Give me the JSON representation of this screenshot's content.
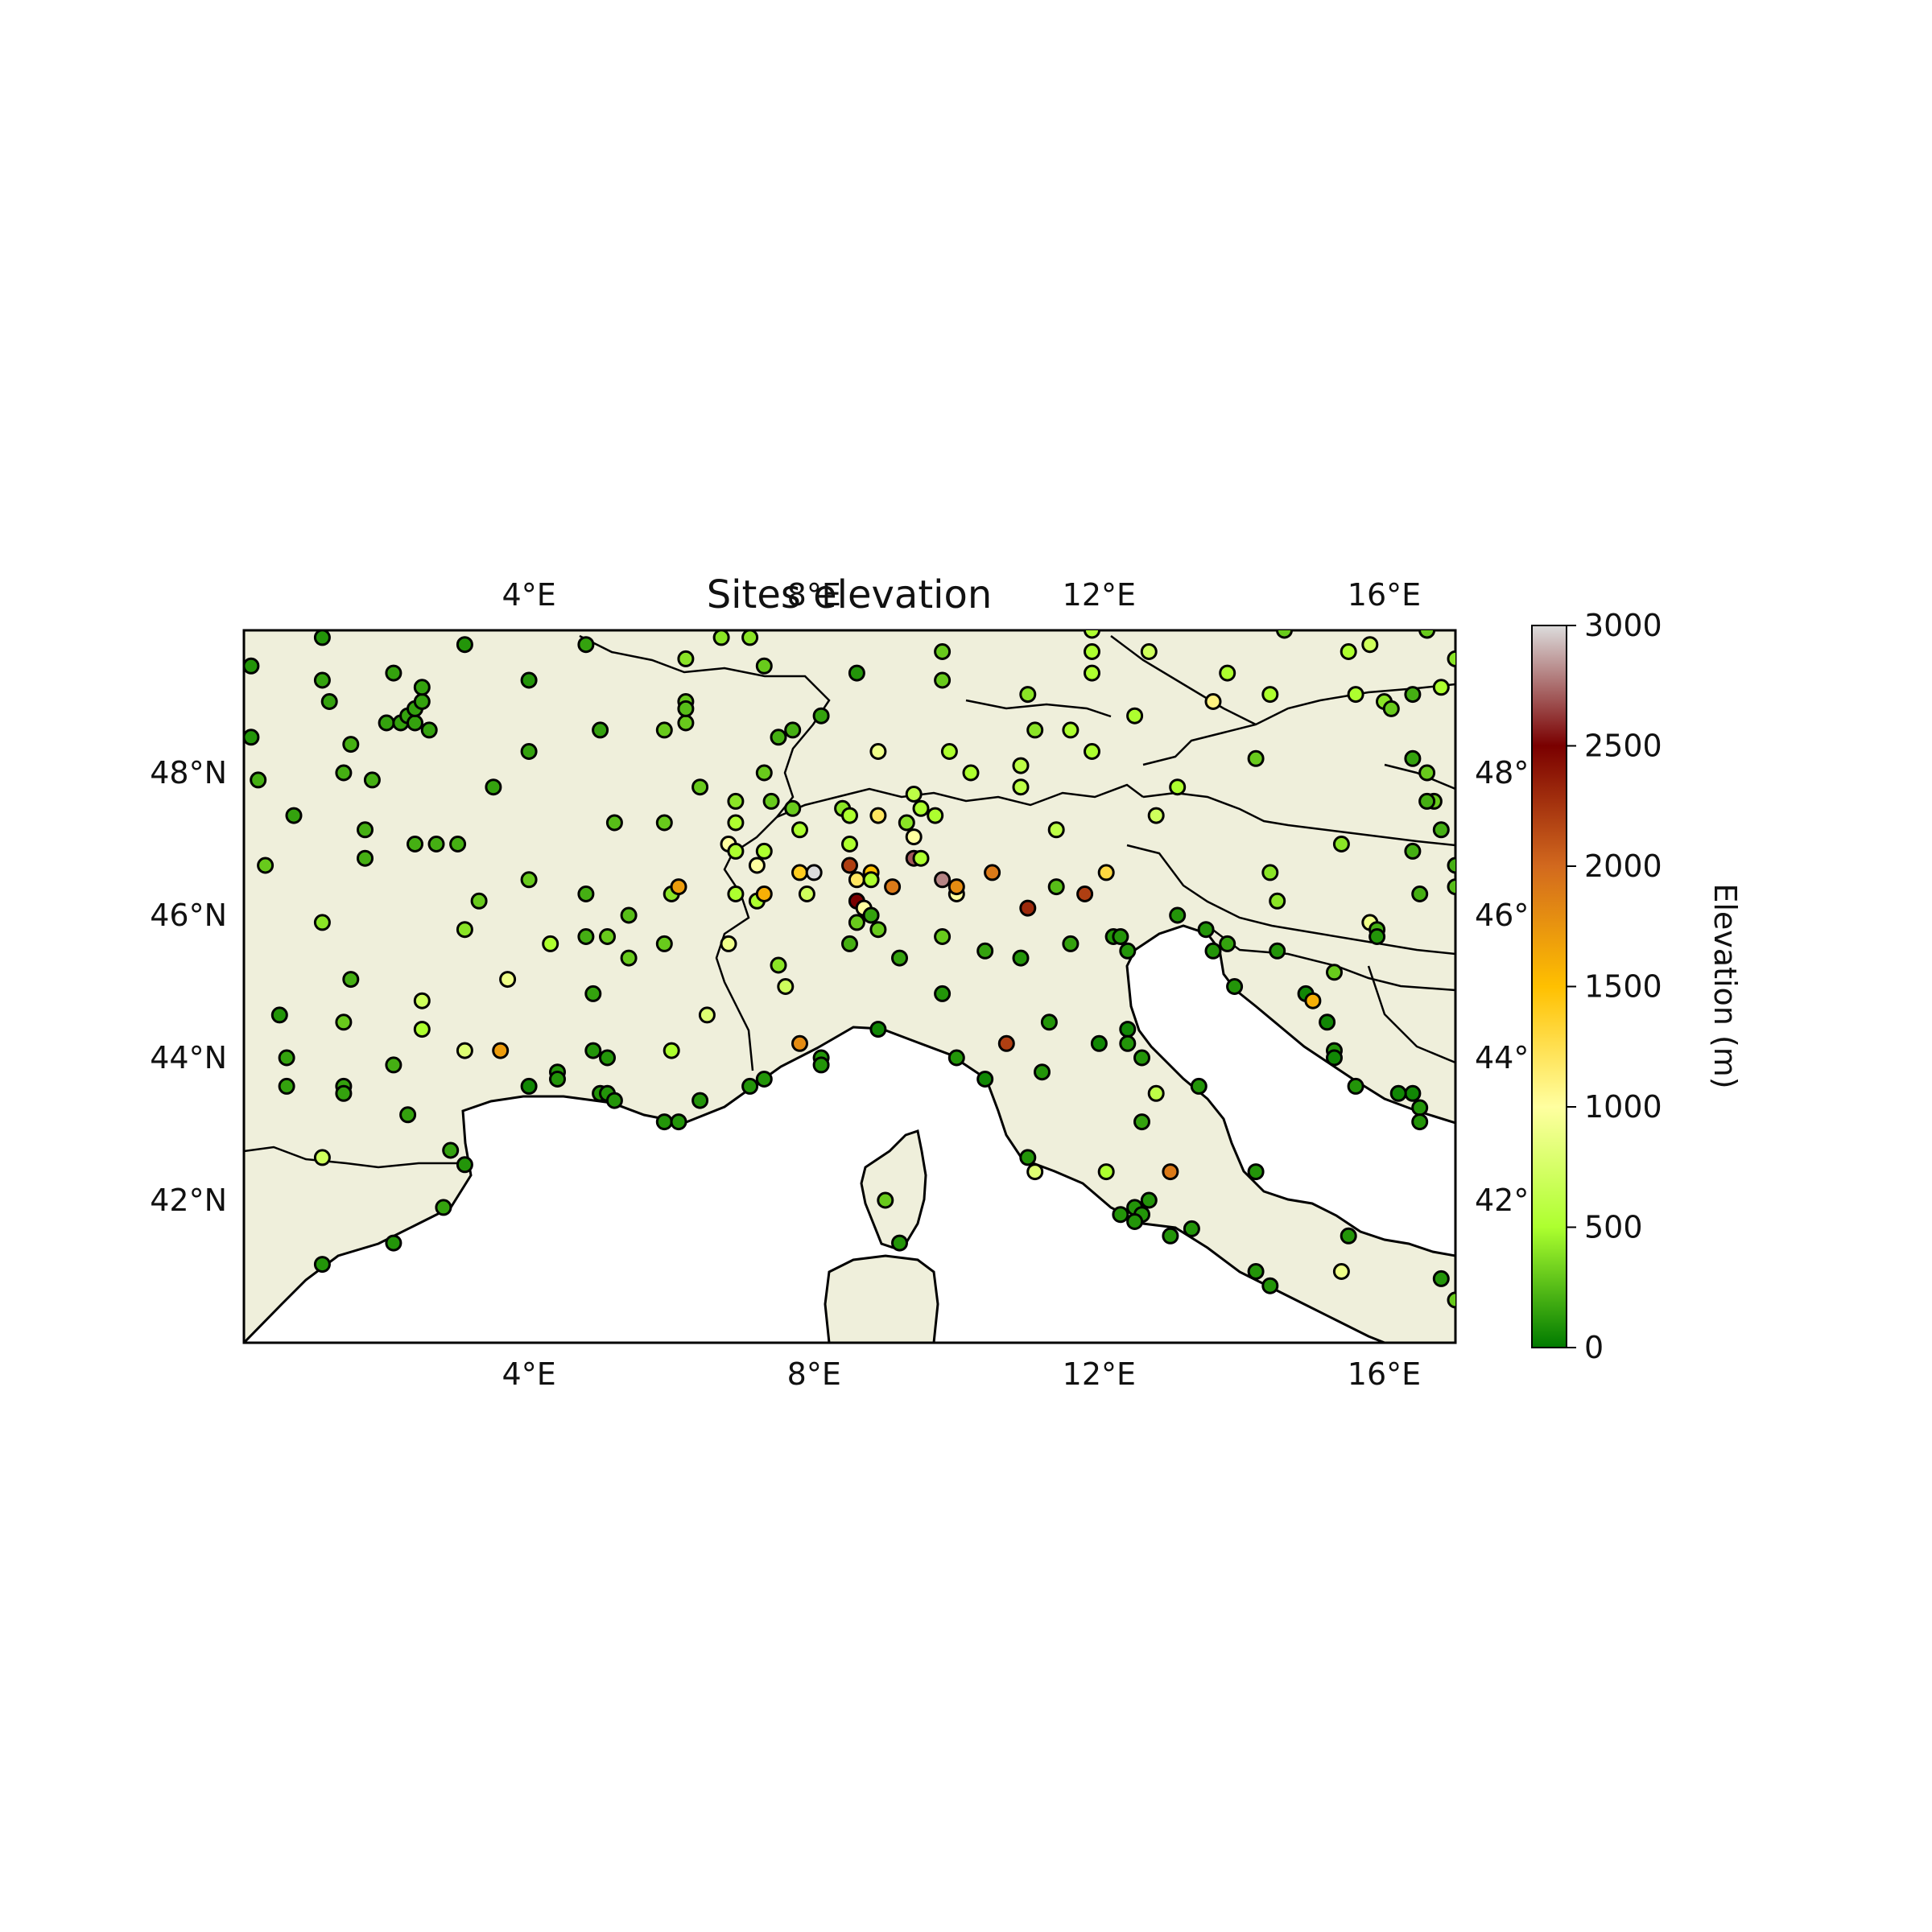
{
  "chart_data": {
    "type": "scatter",
    "title": "Sites elevation",
    "map_extent": {
      "lon": [
        0,
        17
      ],
      "lat": [
        40,
        50
      ]
    },
    "x_ticks": [
      "4°E",
      "8°E",
      "12°E",
      "16°E"
    ],
    "y_ticks": [
      "42°N",
      "44°N",
      "46°N",
      "48°N"
    ],
    "y_ticks_right": [
      "42°",
      "44°",
      "46°",
      "48°"
    ],
    "x_tick_values": [
      4,
      8,
      12,
      16
    ],
    "y_tick_values": [
      42,
      44,
      46,
      48
    ],
    "land_color": "#efefdb",
    "sea_color": "#ffffff",
    "colorbar": {
      "label": "Elevation (m)",
      "ticks": [
        "0",
        "500",
        "1000",
        "1500",
        "2000",
        "2500",
        "3000"
      ],
      "tick_values": [
        0,
        500,
        1000,
        1500,
        2000,
        2500,
        3000
      ],
      "range": [
        0,
        3000
      ],
      "colors": [
        "#007a00",
        "#adff2f",
        "#ffffa0",
        "#ffc000",
        "#d2691e",
        "#7a0000",
        "#dcdcdc"
      ]
    },
    "points": [
      [
        0.1,
        49.5,
        100
      ],
      [
        0.1,
        48.5,
        100
      ],
      [
        0.2,
        47.9,
        200
      ],
      [
        0.3,
        46.7,
        300
      ],
      [
        0.5,
        44.6,
        100
      ],
      [
        0.6,
        44.0,
        150
      ],
      [
        0.6,
        43.6,
        150
      ],
      [
        0.7,
        47.4,
        150
      ],
      [
        1.1,
        49.9,
        100
      ],
      [
        1.1,
        49.3,
        150
      ],
      [
        1.2,
        49.0,
        150
      ],
      [
        1.1,
        45.9,
        400
      ],
      [
        1.1,
        42.6,
        700
      ],
      [
        1.4,
        48.0,
        200
      ],
      [
        1.4,
        44.5,
        300
      ],
      [
        1.4,
        43.6,
        150
      ],
      [
        1.4,
        43.5,
        150
      ],
      [
        1.5,
        45.1,
        200
      ],
      [
        1.5,
        48.4,
        200
      ],
      [
        1.7,
        47.2,
        200
      ],
      [
        1.7,
        46.8,
        200
      ],
      [
        1.8,
        47.9,
        200
      ],
      [
        2.0,
        48.7,
        150
      ],
      [
        2.1,
        49.4,
        150
      ],
      [
        2.2,
        48.7,
        150
      ],
      [
        2.3,
        48.8,
        150
      ],
      [
        2.4,
        48.7,
        150
      ],
      [
        2.4,
        47.0,
        200
      ],
      [
        2.4,
        48.9,
        150
      ],
      [
        2.5,
        49.0,
        150
      ],
      [
        2.5,
        49.2,
        150
      ],
      [
        2.6,
        48.6,
        150
      ],
      [
        2.7,
        47.0,
        200
      ],
      [
        2.5,
        44.8,
        700
      ],
      [
        2.5,
        44.4,
        500
      ],
      [
        2.3,
        43.2,
        150
      ],
      [
        2.1,
        43.9,
        200
      ],
      [
        2.9,
        42.7,
        150
      ],
      [
        2.8,
        41.9,
        150
      ],
      [
        1.1,
        41.1,
        100
      ],
      [
        2.1,
        41.4,
        100
      ],
      [
        3.1,
        49.8,
        100
      ],
      [
        3.1,
        45.8,
        400
      ],
      [
        3.3,
        46.2,
        300
      ],
      [
        3.0,
        47.0,
        200
      ],
      [
        3.1,
        44.1,
        800
      ],
      [
        3.6,
        44.1,
        1700
      ],
      [
        3.1,
        42.5,
        100
      ],
      [
        3.5,
        47.8,
        150
      ],
      [
        3.7,
        45.1,
        900
      ],
      [
        4.0,
        49.3,
        100
      ],
      [
        4.0,
        48.3,
        150
      ],
      [
        4.0,
        46.5,
        300
      ],
      [
        4.3,
        45.6,
        500
      ],
      [
        4.4,
        43.8,
        100
      ],
      [
        4.4,
        43.7,
        100
      ],
      [
        4.0,
        43.6,
        50
      ],
      [
        4.8,
        49.8,
        150
      ],
      [
        4.8,
        46.3,
        200
      ],
      [
        4.8,
        45.7,
        200
      ],
      [
        4.9,
        44.9,
        150
      ],
      [
        4.9,
        44.1,
        100
      ],
      [
        5.0,
        43.5,
        100
      ],
      [
        5.1,
        44.0,
        100
      ],
      [
        5.1,
        43.5,
        100
      ],
      [
        5.2,
        43.4,
        100
      ],
      [
        5.0,
        48.6,
        150
      ],
      [
        5.2,
        47.3,
        250
      ],
      [
        5.4,
        46.0,
        250
      ],
      [
        5.1,
        45.7,
        300
      ],
      [
        5.4,
        45.4,
        300
      ],
      [
        5.9,
        43.1,
        100
      ],
      [
        6.1,
        43.1,
        100
      ],
      [
        5.9,
        45.6,
        300
      ],
      [
        6.0,
        46.3,
        400
      ],
      [
        6.1,
        46.4,
        1700
      ],
      [
        6.0,
        44.1,
        500
      ],
      [
        5.9,
        48.6,
        300
      ],
      [
        5.9,
        47.3,
        300
      ],
      [
        6.2,
        49.6,
        400
      ],
      [
        6.2,
        49.0,
        300
      ],
      [
        6.2,
        48.7,
        300
      ],
      [
        6.2,
        48.9,
        250
      ],
      [
        6.4,
        47.8,
        300
      ],
      [
        6.4,
        43.4,
        100
      ],
      [
        6.5,
        44.6,
        800
      ],
      [
        6.7,
        49.9,
        400
      ],
      [
        6.8,
        45.6,
        900
      ],
      [
        6.8,
        47.0,
        1000
      ],
      [
        6.9,
        47.3,
        500
      ],
      [
        6.9,
        46.9,
        500
      ],
      [
        6.9,
        47.6,
        400
      ],
      [
        6.9,
        46.3,
        500
      ],
      [
        7.1,
        49.9,
        400
      ],
      [
        7.1,
        43.6,
        100
      ],
      [
        7.3,
        43.7,
        100
      ],
      [
        7.3,
        49.5,
        300
      ],
      [
        7.3,
        48.0,
        300
      ],
      [
        7.4,
        47.6,
        300
      ],
      [
        7.3,
        46.9,
        500
      ],
      [
        7.2,
        46.7,
        1000
      ],
      [
        7.2,
        46.2,
        500
      ],
      [
        7.3,
        46.3,
        1600
      ],
      [
        7.5,
        48.5,
        200
      ],
      [
        7.5,
        45.3,
        400
      ],
      [
        7.6,
        45.0,
        700
      ],
      [
        7.7,
        48.6,
        200
      ],
      [
        7.7,
        47.5,
        300
      ],
      [
        7.8,
        47.2,
        500
      ],
      [
        7.8,
        46.6,
        1400
      ],
      [
        7.8,
        44.2,
        1800
      ],
      [
        7.9,
        46.3,
        700
      ],
      [
        8.0,
        46.6,
        3000
      ],
      [
        8.1,
        48.8,
        150
      ],
      [
        8.1,
        44.0,
        100
      ],
      [
        8.1,
        43.9,
        100
      ],
      [
        8.4,
        47.5,
        400
      ],
      [
        8.5,
        47.4,
        500
      ],
      [
        8.5,
        47.0,
        500
      ],
      [
        8.5,
        46.7,
        2200
      ],
      [
        8.5,
        45.6,
        200
      ],
      [
        8.6,
        46.5,
        1200
      ],
      [
        8.6,
        45.9,
        300
      ],
      [
        8.6,
        49.4,
        100
      ],
      [
        8.6,
        46.2,
        2500
      ],
      [
        8.7,
        46.1,
        1000
      ],
      [
        8.8,
        46.6,
        1500
      ],
      [
        8.8,
        46.5,
        500
      ],
      [
        8.8,
        46.0,
        150
      ],
      [
        8.9,
        45.8,
        300
      ],
      [
        8.9,
        47.4,
        1200
      ],
      [
        8.9,
        48.3,
        900
      ],
      [
        8.9,
        44.4,
        50
      ],
      [
        9.1,
        46.4,
        1900
      ],
      [
        9.0,
        42.0,
        300
      ],
      [
        9.2,
        45.4,
        150
      ],
      [
        9.2,
        41.4,
        100
      ],
      [
        9.3,
        47.3,
        400
      ],
      [
        9.4,
        47.1,
        1000
      ],
      [
        9.4,
        47.7,
        600
      ],
      [
        9.5,
        47.5,
        500
      ],
      [
        9.4,
        46.8,
        2700
      ],
      [
        9.5,
        46.8,
        500
      ],
      [
        9.7,
        47.4,
        500
      ],
      [
        9.8,
        46.5,
        2800
      ],
      [
        9.8,
        45.7,
        300
      ],
      [
        9.8,
        44.9,
        100
      ],
      [
        9.8,
        49.7,
        300
      ],
      [
        9.8,
        49.3,
        300
      ],
      [
        9.9,
        48.3,
        500
      ],
      [
        10.0,
        46.3,
        1000
      ],
      [
        10.0,
        46.4,
        1800
      ],
      [
        10.0,
        44.0,
        100
      ],
      [
        10.2,
        48.0,
        500
      ],
      [
        10.4,
        45.5,
        150
      ],
      [
        10.4,
        43.7,
        50
      ],
      [
        10.5,
        46.6,
        1900
      ],
      [
        10.7,
        44.2,
        2200
      ],
      [
        10.9,
        45.4,
        100
      ],
      [
        10.9,
        47.8,
        600
      ],
      [
        10.9,
        48.1,
        600
      ],
      [
        11.0,
        46.1,
        2300
      ],
      [
        11.0,
        49.1,
        400
      ],
      [
        11.0,
        42.6,
        100
      ],
      [
        11.1,
        42.4,
        800
      ],
      [
        11.1,
        48.6,
        400
      ],
      [
        11.2,
        43.8,
        100
      ],
      [
        11.3,
        44.5,
        100
      ],
      [
        11.4,
        47.2,
        600
      ],
      [
        11.4,
        46.4,
        250
      ],
      [
        11.6,
        45.6,
        150
      ],
      [
        11.6,
        48.6,
        500
      ],
      [
        11.9,
        48.3,
        500
      ],
      [
        11.8,
        46.3,
        2200
      ],
      [
        11.9,
        50.0,
        500
      ],
      [
        11.9,
        49.7,
        500
      ],
      [
        11.9,
        49.4,
        500
      ],
      [
        12.2,
        45.7,
        100
      ],
      [
        12.3,
        45.7,
        100
      ],
      [
        12.4,
        45.5,
        100
      ],
      [
        12.4,
        44.4,
        50
      ],
      [
        12.4,
        44.2,
        100
      ],
      [
        12.1,
        46.6,
        1300
      ],
      [
        12.0,
        44.2,
        50
      ],
      [
        12.1,
        42.4,
        500
      ],
      [
        12.3,
        41.8,
        100
      ],
      [
        12.5,
        41.9,
        100
      ],
      [
        12.6,
        41.8,
        100
      ],
      [
        12.5,
        41.7,
        100
      ],
      [
        12.6,
        43.1,
        150
      ],
      [
        12.6,
        44.0,
        100
      ],
      [
        12.7,
        42.0,
        100
      ],
      [
        12.8,
        43.5,
        600
      ],
      [
        12.8,
        47.4,
        700
      ],
      [
        12.5,
        48.8,
        500
      ],
      [
        12.7,
        49.7,
        700
      ],
      [
        13.1,
        47.8,
        500
      ],
      [
        13.0,
        41.5,
        100
      ],
      [
        13.0,
        42.4,
        1900
      ],
      [
        13.1,
        46.0,
        100
      ],
      [
        13.3,
        41.6,
        100
      ],
      [
        13.4,
        43.6,
        100
      ],
      [
        13.5,
        45.8,
        100
      ],
      [
        13.6,
        45.5,
        100
      ],
      [
        13.6,
        49.0,
        1100
      ],
      [
        13.8,
        45.6,
        150
      ],
      [
        13.9,
        45.0,
        100
      ],
      [
        13.8,
        49.4,
        500
      ],
      [
        14.2,
        48.2,
        300
      ],
      [
        14.2,
        42.4,
        100
      ],
      [
        14.2,
        41.0,
        100
      ],
      [
        14.4,
        40.8,
        100
      ],
      [
        14.4,
        46.6,
        400
      ],
      [
        14.4,
        49.1,
        500
      ],
      [
        14.5,
        46.2,
        400
      ],
      [
        14.5,
        45.5,
        100
      ],
      [
        14.6,
        50.0,
        300
      ],
      [
        14.9,
        44.9,
        50
      ],
      [
        15.0,
        44.8,
        1600
      ],
      [
        15.2,
        44.5,
        50
      ],
      [
        15.3,
        45.2,
        300
      ],
      [
        15.3,
        44.1,
        100
      ],
      [
        15.3,
        44.0,
        50
      ],
      [
        15.4,
        47.0,
        400
      ],
      [
        15.4,
        41.0,
        900
      ],
      [
        15.5,
        41.5,
        100
      ],
      [
        15.6,
        49.1,
        500
      ],
      [
        15.5,
        49.7,
        500
      ],
      [
        15.6,
        43.6,
        100
      ],
      [
        15.8,
        45.9,
        900
      ],
      [
        15.9,
        45.8,
        200
      ],
      [
        15.9,
        45.7,
        100
      ],
      [
        15.8,
        49.8,
        700
      ],
      [
        16.0,
        49.0,
        400
      ],
      [
        16.1,
        48.9,
        300
      ],
      [
        16.4,
        48.2,
        150
      ],
      [
        16.4,
        46.9,
        200
      ],
      [
        16.5,
        46.3,
        200
      ],
      [
        16.4,
        43.5,
        50
      ],
      [
        16.5,
        43.3,
        100
      ],
      [
        16.5,
        43.1,
        100
      ],
      [
        16.2,
        43.5,
        50
      ],
      [
        16.4,
        49.1,
        200
      ],
      [
        16.6,
        50.0,
        300
      ],
      [
        16.6,
        48.0,
        300
      ],
      [
        16.7,
        47.6,
        300
      ],
      [
        16.8,
        47.2,
        200
      ],
      [
        16.8,
        49.2,
        500
      ],
      [
        16.8,
        40.9,
        100
      ],
      [
        17.0,
        46.7,
        200
      ],
      [
        17.0,
        46.4,
        250
      ],
      [
        17.0,
        40.6,
        300
      ],
      [
        17.0,
        49.6,
        400
      ],
      [
        16.6,
        47.6,
        200
      ]
    ]
  }
}
